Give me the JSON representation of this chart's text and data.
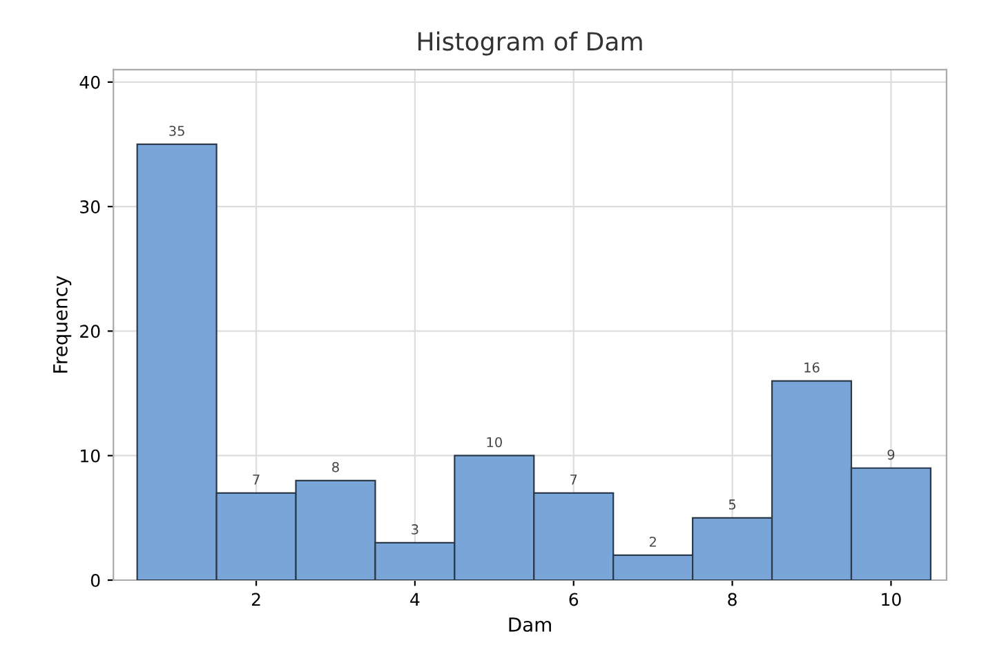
{
  "chart_data": {
    "type": "histogram",
    "title": "Histogram of Dam",
    "xlabel": "Dam",
    "ylabel": "Frequency",
    "bins": [
      0.5,
      1.5,
      2.5,
      3.5,
      4.5,
      5.5,
      6.5,
      7.5,
      8.5,
      9.5,
      10.5
    ],
    "values": [
      35,
      7,
      8,
      3,
      10,
      7,
      2,
      5,
      16,
      9
    ],
    "color": "#7aa5d8",
    "data_labels": true,
    "grid": true,
    "xlim": [
      0.2,
      10.7
    ],
    "xticks": [
      2,
      4,
      6,
      8,
      10
    ],
    "ylim": [
      0,
      41
    ],
    "yticks": [
      0,
      10,
      20,
      30,
      40
    ]
  }
}
